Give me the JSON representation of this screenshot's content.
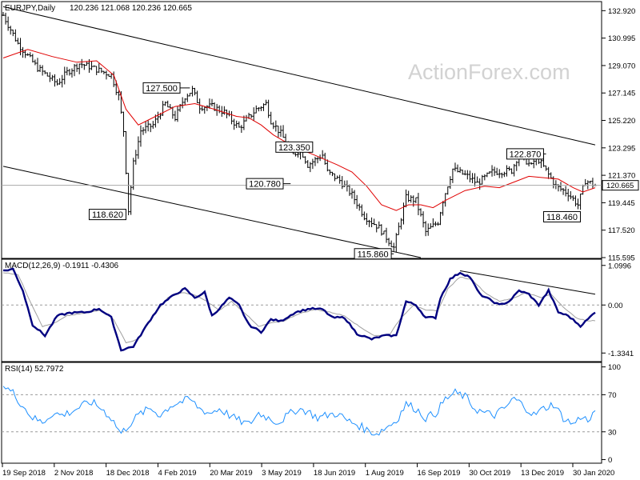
{
  "chart_data": [
    {
      "type": "candlestick",
      "header": {
        "symbol": "EURJPY,Daily",
        "ohlc": "120.236 121.068 120.236 120.665"
      },
      "watermark": "ActionForex.com",
      "ylim": [
        115.595,
        133.5
      ],
      "y_ticks": [
        "132.920",
        "130.995",
        "129.070",
        "127.145",
        "125.220",
        "123.295",
        "121.370",
        "119.445",
        "117.520",
        "115.595"
      ],
      "last_price": {
        "label": "120.665",
        "value": 120.665
      },
      "x_ticks": [
        "19 Sep 2018",
        "2 Nov 2018",
        "18 Dec 2018",
        "4 Feb 2019",
        "20 Mar 2019",
        "3 May 2019",
        "18 Jun 2019",
        "1 Aug 2019",
        "16 Sep 2019",
        "30 Oct 2019",
        "13 Dec 2019",
        "30 Jan 2020"
      ],
      "close_path": [
        [
          0,
          132.6
        ],
        [
          6,
          130.6
        ],
        [
          14,
          128.9
        ],
        [
          22,
          127.8
        ],
        [
          26,
          128.6
        ],
        [
          31,
          129.2
        ],
        [
          35,
          129.0
        ],
        [
          44,
          128.4
        ],
        [
          47,
          126.9
        ],
        [
          49,
          124.5
        ],
        [
          51,
          118.9
        ],
        [
          53,
          122.2
        ],
        [
          56,
          124.5
        ],
        [
          61,
          124.9
        ],
        [
          66,
          126.4
        ],
        [
          70,
          125.4
        ],
        [
          74,
          126.9
        ],
        [
          77,
          127.35
        ],
        [
          80,
          126.2
        ],
        [
          85,
          126.2
        ],
        [
          90,
          125.8
        ],
        [
          96,
          124.7
        ],
        [
          103,
          126.0
        ],
        [
          107,
          126.4
        ],
        [
          109,
          125.2
        ],
        [
          113,
          124.3
        ],
        [
          118,
          122.8
        ],
        [
          121,
          123.2
        ],
        [
          124,
          122.1
        ],
        [
          130,
          122.8
        ],
        [
          132,
          121.6
        ],
        [
          137,
          121.0
        ],
        [
          142,
          120.0
        ],
        [
          147,
          118.5
        ],
        [
          153,
          117.7
        ],
        [
          159,
          116.3
        ],
        [
          164,
          119.8
        ],
        [
          168,
          119.6
        ],
        [
          172,
          117.4
        ],
        [
          177,
          118.1
        ],
        [
          179,
          119.6
        ],
        [
          183,
          121.8
        ],
        [
          189,
          121.3
        ],
        [
          193,
          120.8
        ],
        [
          199,
          121.6
        ],
        [
          207,
          121.7
        ],
        [
          210,
          122.9
        ],
        [
          215,
          122.0
        ],
        [
          217,
          122.7
        ],
        [
          221,
          121.7
        ],
        [
          225,
          120.6
        ],
        [
          230,
          120.1
        ],
        [
          234,
          119.3
        ],
        [
          237,
          121.0
        ],
        [
          241,
          120.665
        ]
      ],
      "overlay_line": {
        "name": "Moving average (red)",
        "points": [
          [
            0,
            129.6
          ],
          [
            10,
            130.2
          ],
          [
            20,
            129.7
          ],
          [
            30,
            129.3
          ],
          [
            38,
            129.4
          ],
          [
            45,
            128.4
          ],
          [
            50,
            126.0
          ],
          [
            55,
            124.9
          ],
          [
            62,
            125.5
          ],
          [
            70,
            126.2
          ],
          [
            78,
            126.4
          ],
          [
            86,
            126.0
          ],
          [
            95,
            125.5
          ],
          [
            100,
            125.4
          ],
          [
            105,
            124.9
          ],
          [
            110,
            124.2
          ],
          [
            118,
            123.4
          ],
          [
            128,
            122.7
          ],
          [
            136,
            122.1
          ],
          [
            142,
            121.6
          ],
          [
            148,
            120.6
          ],
          [
            154,
            119.3
          ],
          [
            160,
            118.9
          ],
          [
            165,
            119.3
          ],
          [
            170,
            119.3
          ],
          [
            175,
            119.1
          ],
          [
            180,
            119.6
          ],
          [
            188,
            120.3
          ],
          [
            196,
            120.6
          ],
          [
            202,
            120.5
          ],
          [
            208,
            120.9
          ],
          [
            214,
            121.3
          ],
          [
            220,
            121.2
          ],
          [
            226,
            121.1
          ],
          [
            232,
            120.5
          ],
          [
            236,
            120.2
          ],
          [
            241,
            120.5
          ]
        ]
      },
      "trend_lines": [
        {
          "from": [
            0,
            133.2
          ],
          "to": [
            241,
            123.5
          ]
        },
        {
          "from": [
            0,
            122.0
          ],
          "to": [
            170,
            115.595
          ]
        }
      ],
      "callouts": [
        {
          "label": "127.500",
          "at": [
            76,
            127.5
          ],
          "box": [
            57,
            127.5
          ],
          "anchor": "left"
        },
        {
          "label": "118.620",
          "at": [
            49,
            118.62
          ],
          "box": [
            35,
            118.62
          ],
          "anchor": "left"
        },
        {
          "label": "123.350",
          "at": [
            121,
            123.35
          ],
          "box": [
            111,
            123.35
          ],
          "anchor": "left"
        },
        {
          "label": "120.780",
          "at": [
            117,
            120.78
          ],
          "box": [
            99,
            120.78
          ],
          "anchor": "left"
        },
        {
          "label": "115.860",
          "at": [
            159,
            115.86
          ],
          "box": [
            143,
            115.86
          ],
          "anchor": "left"
        },
        {
          "label": "122.870",
          "at": [
            221,
            122.87
          ],
          "box": [
            205,
            122.87
          ],
          "anchor": "left"
        },
        {
          "label": "118.460",
          "at": [
            234,
            118.46
          ],
          "box": [
            220,
            118.46
          ],
          "anchor": "left"
        }
      ],
      "bars": 242,
      "volatility": 0.45
    },
    {
      "type": "line",
      "title": "MACD(12,26,9) -0.1911 -0.4306",
      "ylim": [
        -1.55,
        1.25
      ],
      "y_ticks": [
        "1.0996",
        "0.00",
        "-1.3341"
      ],
      "zero_line": 0,
      "series": [
        {
          "role": "main",
          "color": "#000080",
          "points": [
            [
              0,
              0.95
            ],
            [
              4,
              1.0
            ],
            [
              8,
              0.4
            ],
            [
              12,
              -0.55
            ],
            [
              17,
              -0.85
            ],
            [
              22,
              -0.3
            ],
            [
              27,
              -0.22
            ],
            [
              34,
              -0.2
            ],
            [
              39,
              -0.1
            ],
            [
              44,
              -0.35
            ],
            [
              48,
              -1.25
            ],
            [
              53,
              -1.15
            ],
            [
              59,
              -0.5
            ],
            [
              64,
              0.0
            ],
            [
              70,
              0.3
            ],
            [
              74,
              0.45
            ],
            [
              78,
              0.2
            ],
            [
              82,
              0.35
            ],
            [
              85,
              -0.3
            ],
            [
              88,
              -0.1
            ],
            [
              92,
              0.2
            ],
            [
              96,
              0.0
            ],
            [
              100,
              -0.55
            ],
            [
              105,
              -0.75
            ],
            [
              109,
              -0.4
            ],
            [
              113,
              -0.45
            ],
            [
              119,
              -0.2
            ],
            [
              125,
              -0.1
            ],
            [
              130,
              -0.12
            ],
            [
              134,
              -0.35
            ],
            [
              139,
              -0.35
            ],
            [
              144,
              -0.8
            ],
            [
              150,
              -0.95
            ],
            [
              155,
              -0.85
            ],
            [
              160,
              -0.85
            ],
            [
              164,
              0.1
            ],
            [
              168,
              0.0
            ],
            [
              172,
              -0.35
            ],
            [
              176,
              -0.35
            ],
            [
              178,
              0.2
            ],
            [
              182,
              0.72
            ],
            [
              186,
              0.9
            ],
            [
              190,
              0.78
            ],
            [
              194,
              0.3
            ],
            [
              198,
              0.15
            ],
            [
              202,
              0.0
            ],
            [
              206,
              0.1
            ],
            [
              210,
              0.4
            ],
            [
              214,
              0.3
            ],
            [
              218,
              0.0
            ],
            [
              222,
              0.4
            ],
            [
              226,
              -0.2
            ],
            [
              230,
              -0.3
            ],
            [
              235,
              -0.58
            ],
            [
              238,
              -0.4
            ],
            [
              241,
              -0.19
            ]
          ]
        },
        {
          "role": "signal",
          "color": "#a0a0a0",
          "points": [
            [
              0,
              0.9
            ],
            [
              6,
              0.85
            ],
            [
              11,
              0.1
            ],
            [
              16,
              -0.6
            ],
            [
              21,
              -0.5
            ],
            [
              26,
              -0.3
            ],
            [
              34,
              -0.22
            ],
            [
              40,
              -0.14
            ],
            [
              45,
              -0.4
            ],
            [
              50,
              -1.05
            ],
            [
              55,
              -0.95
            ],
            [
              61,
              -0.3
            ],
            [
              67,
              0.2
            ],
            [
              73,
              0.35
            ],
            [
              79,
              0.25
            ],
            [
              84,
              0.05
            ],
            [
              88,
              -0.15
            ],
            [
              93,
              0.1
            ],
            [
              98,
              -0.2
            ],
            [
              104,
              -0.6
            ],
            [
              109,
              -0.5
            ],
            [
              114,
              -0.45
            ],
            [
              120,
              -0.25
            ],
            [
              127,
              -0.12
            ],
            [
              133,
              -0.2
            ],
            [
              139,
              -0.3
            ],
            [
              145,
              -0.6
            ],
            [
              151,
              -0.85
            ],
            [
              157,
              -0.85
            ],
            [
              162,
              -0.35
            ],
            [
              167,
              0.0
            ],
            [
              172,
              -0.15
            ],
            [
              177,
              -0.15
            ],
            [
              181,
              0.45
            ],
            [
              186,
              0.78
            ],
            [
              191,
              0.7
            ],
            [
              196,
              0.35
            ],
            [
              202,
              0.1
            ],
            [
              208,
              0.2
            ],
            [
              213,
              0.35
            ],
            [
              219,
              0.2
            ],
            [
              223,
              0.3
            ],
            [
              228,
              -0.05
            ],
            [
              233,
              -0.35
            ],
            [
              238,
              -0.45
            ],
            [
              241,
              -0.43
            ]
          ]
        }
      ],
      "trend_line": {
        "from": [
          186,
          0.95
        ],
        "to": [
          241,
          0.3
        ]
      }
    },
    {
      "type": "line",
      "title": "RSI(14) 52.7972",
      "ylim": [
        -3,
        104
      ],
      "y_ticks": [
        "100",
        "70",
        "30",
        "0"
      ],
      "levels": [
        70,
        30
      ],
      "series": [
        {
          "name": "RSI",
          "color": "#1e90ff",
          "points": [
            [
              0,
              80
            ],
            [
              4,
              72
            ],
            [
              8,
              58
            ],
            [
              12,
              45
            ],
            [
              16,
              40
            ],
            [
              20,
              50
            ],
            [
              24,
              48
            ],
            [
              28,
              52
            ],
            [
              32,
              58
            ],
            [
              36,
              62
            ],
            [
              40,
              55
            ],
            [
              44,
              45
            ],
            [
              48,
              28
            ],
            [
              52,
              40
            ],
            [
              56,
              50
            ],
            [
              60,
              55
            ],
            [
              64,
              48
            ],
            [
              68,
              58
            ],
            [
              72,
              62
            ],
            [
              76,
              65
            ],
            [
              80,
              55
            ],
            [
              84,
              50
            ],
            [
              88,
              55
            ],
            [
              92,
              48
            ],
            [
              96,
              42
            ],
            [
              100,
              38
            ],
            [
              104,
              50
            ],
            [
              108,
              45
            ],
            [
              112,
              40
            ],
            [
              116,
              48
            ],
            [
              120,
              55
            ],
            [
              124,
              52
            ],
            [
              128,
              45
            ],
            [
              132,
              48
            ],
            [
              136,
              50
            ],
            [
              140,
              42
            ],
            [
              144,
              38
            ],
            [
              148,
              32
            ],
            [
              152,
              28
            ],
            [
              156,
              35
            ],
            [
              160,
              42
            ],
            [
              164,
              60
            ],
            [
              168,
              55
            ],
            [
              172,
              45
            ],
            [
              176,
              50
            ],
            [
              180,
              65
            ],
            [
              184,
              72
            ],
            [
              188,
              68
            ],
            [
              192,
              55
            ],
            [
              196,
              50
            ],
            [
              200,
              48
            ],
            [
              204,
              55
            ],
            [
              208,
              66
            ],
            [
              212,
              58
            ],
            [
              216,
              48
            ],
            [
              220,
              55
            ],
            [
              224,
              60
            ],
            [
              228,
              45
            ],
            [
              232,
              38
            ],
            [
              236,
              48
            ],
            [
              238,
              40
            ],
            [
              241,
              53
            ]
          ]
        }
      ]
    }
  ]
}
